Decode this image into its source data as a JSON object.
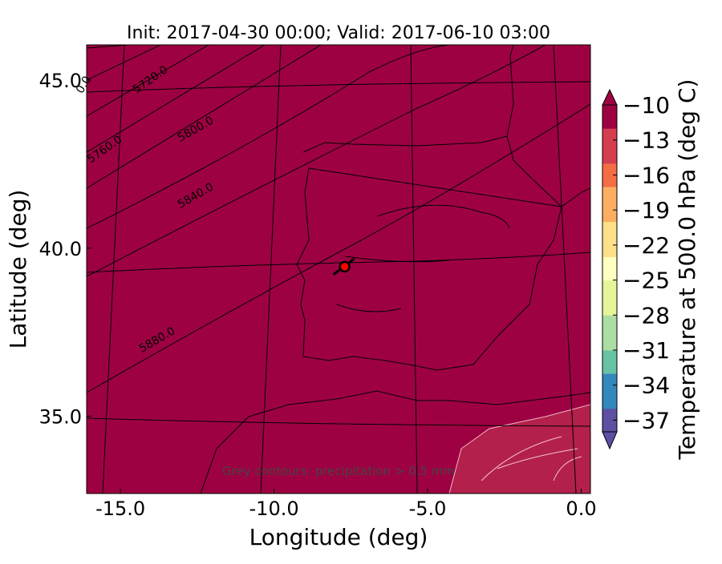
{
  "chart_data": {
    "type": "map",
    "title": "Init: 2017-04-30 00:00; Valid: 2017-06-10 03:00",
    "xlabel": "Longitude (deg)",
    "ylabel": "Latitude (deg)",
    "xlim": [
      -16.1,
      0.3
    ],
    "ylim": [
      32.7,
      46.05
    ],
    "xticks": [
      {
        "value": -15,
        "label": "-15.0"
      },
      {
        "value": -10,
        "label": "-10.0"
      },
      {
        "value": -5,
        "label": "-5.0"
      },
      {
        "value": 0,
        "label": "0.0"
      }
    ],
    "yticks": [
      {
        "value": 35,
        "label": "35.0"
      },
      {
        "value": 40,
        "label": "40.0"
      },
      {
        "value": 45,
        "label": "45.0"
      }
    ],
    "background_color": "#9e0142",
    "contour_labels": [
      "0.0",
      "5720.0",
      "5760.0",
      "5800.0",
      "5840.0",
      "5880.0"
    ],
    "annotation": "Grey contours: precipitation > 0.5 mm",
    "marker": {
      "x": -7.7,
      "y": 39.45,
      "color": "#ff0000"
    },
    "colorbar": {
      "label": "Temperature at 500.0 hPa (deg C)",
      "lim": [
        -38,
        -10
      ],
      "colors": [
        "#5e4fa2",
        "#3288bd",
        "#66c2a5",
        "#abdda4",
        "#e6f598",
        "#ffffbf",
        "#fee08b",
        "#fdae61",
        "#f46d43",
        "#d53e4f",
        "#9e0142"
      ],
      "ticks": [
        {
          "value": -10,
          "label": "−10"
        },
        {
          "value": -13,
          "label": "−13"
        },
        {
          "value": -16,
          "label": "−16"
        },
        {
          "value": -19,
          "label": "−19"
        },
        {
          "value": -22,
          "label": "−22"
        },
        {
          "value": -25,
          "label": "−25"
        },
        {
          "value": -28,
          "label": "−28"
        },
        {
          "value": -31,
          "label": "−31"
        },
        {
          "value": -34,
          "label": "−34"
        },
        {
          "value": -37,
          "label": "−37"
        }
      ]
    }
  }
}
